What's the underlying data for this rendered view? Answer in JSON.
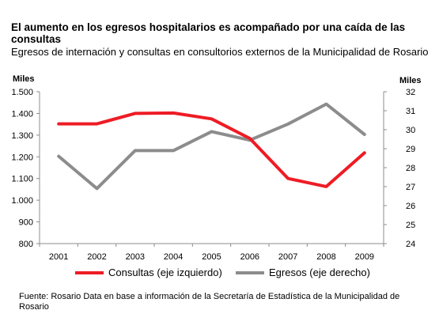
{
  "header": {
    "title": "El aumento en los egresos hospitalarios es acompañado por una caída de las consultas",
    "subtitle": "Egresos de internación y consultas en consultorios externos de la Municipalidad de Rosario"
  },
  "chart_data": {
    "type": "line",
    "title": "El aumento en los egresos hospitalarios es acompañado por una caída de las consultas",
    "subtitle": "Egresos de internación y consultas en consultorios externos de la Municipalidad de Rosario",
    "x": [
      "2001",
      "2002",
      "2003",
      "2004",
      "2005",
      "2006",
      "2007",
      "2008",
      "2009"
    ],
    "y_left": {
      "label": "Miles",
      "range": [
        800,
        1500
      ],
      "ticks": [
        "800",
        "900",
        "1.000",
        "1.100",
        "1.200",
        "1.300",
        "1.400",
        "1.500"
      ]
    },
    "y_right": {
      "label": "Miles",
      "range": [
        24,
        32
      ],
      "ticks": [
        "24",
        "25",
        "26",
        "27",
        "28",
        "29",
        "30",
        "31",
        "32"
      ]
    },
    "series": [
      {
        "name": "Consultas (eje izquierdo)",
        "axis": "left",
        "color": "#ee1c25",
        "values": [
          1352,
          1352,
          1400,
          1402,
          1375,
          1285,
          1100,
          1063,
          1218
        ]
      },
      {
        "name": "Egresos (eje derecho)",
        "axis": "right",
        "color": "#8c8c8c",
        "values": [
          28.6,
          26.9,
          28.9,
          28.9,
          29.9,
          29.45,
          30.3,
          31.35,
          29.75
        ]
      }
    ],
    "grid": false,
    "legend": "bottom"
  },
  "footer": {
    "source": "Fuente: Rosario Data en base a información de la Secretaría de Estadística de la Municipalidad de Rosario"
  }
}
